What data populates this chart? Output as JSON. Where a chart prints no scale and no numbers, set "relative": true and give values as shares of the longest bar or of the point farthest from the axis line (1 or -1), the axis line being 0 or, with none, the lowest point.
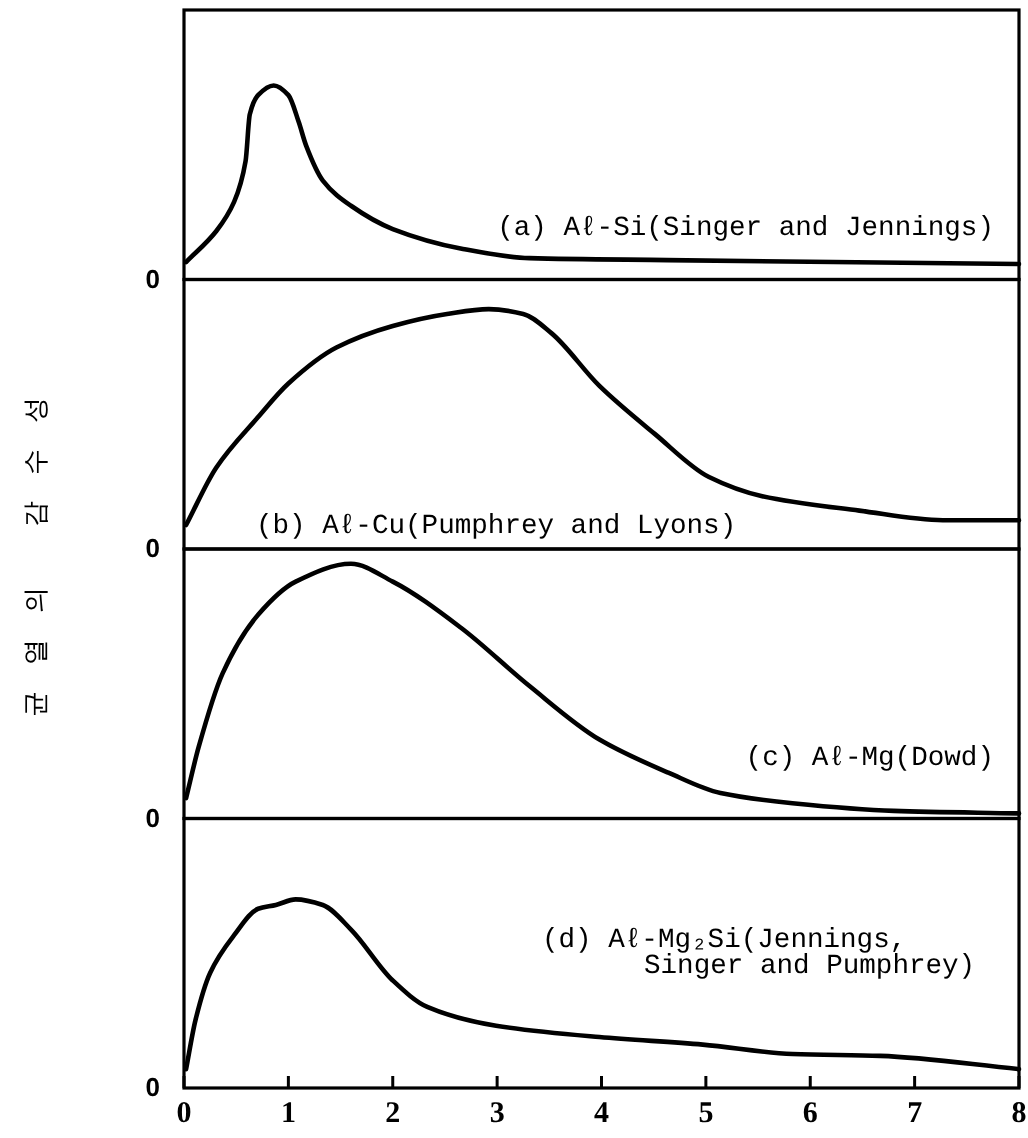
{
  "chart_data": [
    {
      "type": "line",
      "title": "(a) Aℓ-Si(Singer and Jennings)",
      "relative": true,
      "color": "#000000",
      "xlim": [
        0,
        8
      ],
      "tick_labels": false,
      "annotations": [
        "0"
      ],
      "x": [
        0.02,
        0.31,
        0.48,
        0.59,
        0.63,
        0.71,
        0.86,
        1.0,
        1.1,
        1.17,
        1.33,
        1.6,
        2.0,
        2.65,
        3.31,
        4.63,
        8.0
      ],
      "values": [
        0.09,
        0.25,
        0.4,
        0.61,
        0.85,
        0.95,
        1.0,
        0.95,
        0.81,
        0.69,
        0.51,
        0.38,
        0.26,
        0.16,
        0.11,
        0.1,
        0.08
      ]
    },
    {
      "type": "line",
      "title": "(b) Aℓ-Cu(Pumphrey and Lyons)",
      "ylabel": "균열의 감수성",
      "relative": true,
      "color": "#000000",
      "xlim": [
        0,
        8
      ],
      "tick_labels": false,
      "annotations": [
        "0"
      ],
      "x": [
        0.02,
        0.31,
        0.71,
        1.0,
        1.46,
        2.0,
        2.52,
        2.92,
        3.25,
        3.52,
        3.98,
        4.51,
        5.03,
        5.54,
        6.47,
        7.27,
        8.0
      ],
      "values": [
        0.1,
        0.34,
        0.55,
        0.69,
        0.84,
        0.93,
        0.98,
        1.0,
        0.98,
        0.9,
        0.68,
        0.48,
        0.3,
        0.22,
        0.16,
        0.12,
        0.12
      ]
    },
    {
      "type": "line",
      "title": "(c) Aℓ-Mg(Dowd)",
      "relative": true,
      "color": "#000000",
      "xlim": [
        0,
        8
      ],
      "tick_labels": false,
      "annotations": [
        "0"
      ],
      "x": [
        0.02,
        0.14,
        0.37,
        0.71,
        1.07,
        1.6,
        2.0,
        2.65,
        3.31,
        3.98,
        4.64,
        5.14,
        5.83,
        6.8,
        8.0
      ],
      "values": [
        0.08,
        0.28,
        0.57,
        0.8,
        0.93,
        1.0,
        0.93,
        0.75,
        0.52,
        0.31,
        0.18,
        0.1,
        0.06,
        0.03,
        0.02
      ]
    },
    {
      "type": "line",
      "title": "(d) Aℓ-Mg₂Si(Jennings,\nSinger and Pumphrey)",
      "relative": true,
      "color": "#000000",
      "xlim": [
        0,
        8
      ],
      "tick_labels": "x",
      "xticks": [
        0,
        1,
        2,
        3,
        4,
        5,
        6,
        7,
        8
      ],
      "annotations": [
        "0"
      ],
      "x": [
        0.02,
        0.11,
        0.25,
        0.48,
        0.71,
        0.88,
        1.07,
        1.33,
        1.6,
        2.0,
        2.33,
        2.99,
        3.98,
        4.97,
        5.83,
        6.67,
        8.0
      ],
      "values": [
        0.1,
        0.36,
        0.61,
        0.81,
        0.95,
        0.97,
        1.0,
        0.97,
        0.84,
        0.57,
        0.43,
        0.33,
        0.27,
        0.23,
        0.18,
        0.17,
        0.1
      ]
    }
  ]
}
